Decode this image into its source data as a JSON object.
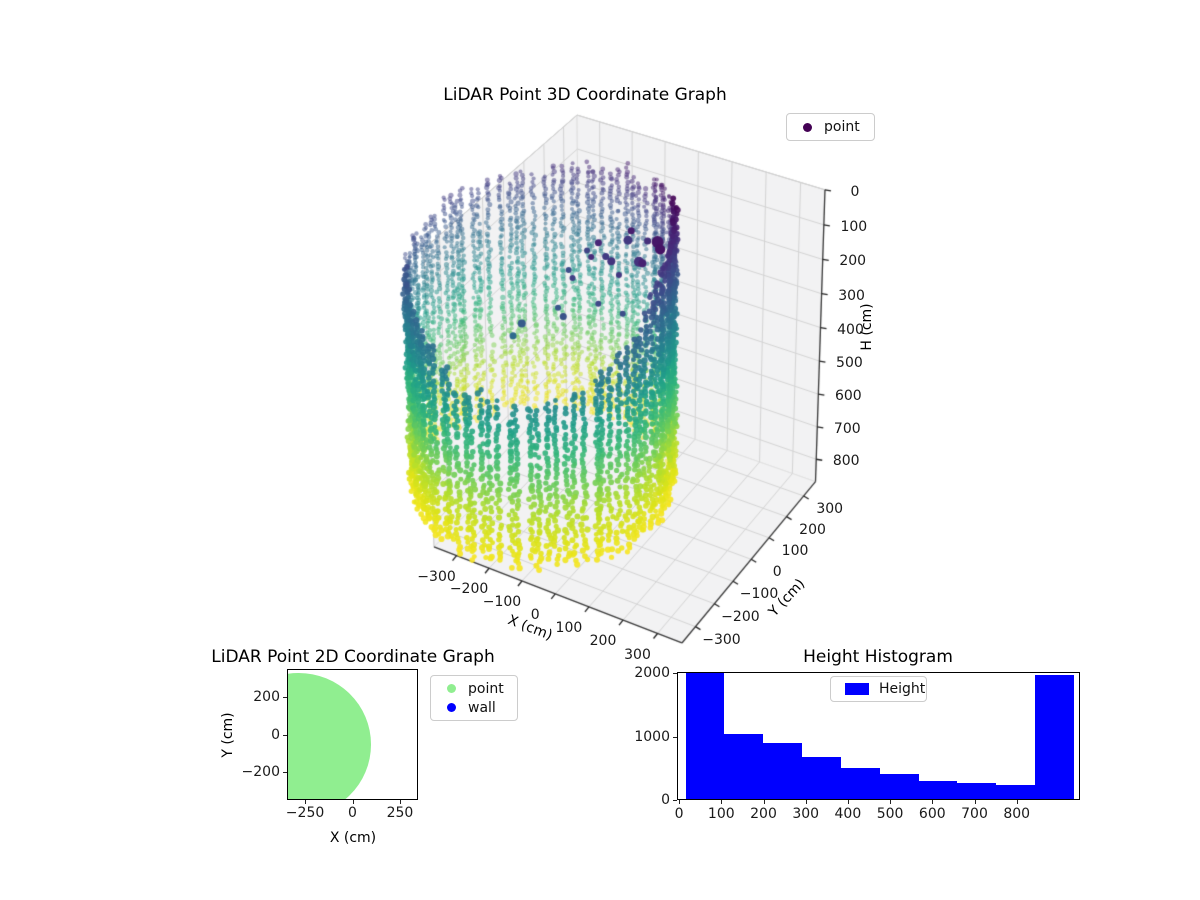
{
  "figure": {
    "background": "#ffffff"
  },
  "chart_data": [
    {
      "id": "plot3d",
      "type": "scatter3d",
      "title": "LiDAR Point 3D Coordinate Graph",
      "legend": {
        "entries": [
          {
            "label": "point",
            "color": "#440154"
          }
        ]
      },
      "xlabel": "X (cm)",
      "ylabel": "Y (cm)",
      "zlabel": "H (cm)",
      "xticks": [
        -300,
        -200,
        -100,
        0,
        100,
        200,
        300
      ],
      "xtick_labels": [
        "−300",
        "−200",
        "−100",
        "0",
        "100",
        "200",
        "300"
      ],
      "yticks": [
        -300,
        -200,
        -100,
        0,
        100,
        200,
        300
      ],
      "ytick_labels": [
        "−300",
        "−200",
        "−100",
        "0",
        "100",
        "200",
        "300"
      ],
      "zticks": [
        0,
        100,
        200,
        300,
        400,
        500,
        600,
        700,
        800
      ],
      "ztick_labels": [
        "0",
        "100",
        "200",
        "300",
        "400",
        "500",
        "600",
        "700",
        "800"
      ],
      "xlim": [
        -370,
        370
      ],
      "ylim": [
        -370,
        370
      ],
      "hlim": [
        0,
        870
      ],
      "h_axis_inverted": true,
      "view": {
        "elev": 30,
        "azim": -60
      },
      "colormap": "viridis",
      "viridis_stops": [
        [
          68,
          1,
          84
        ],
        [
          72,
          40,
          120
        ],
        [
          62,
          74,
          137
        ],
        [
          49,
          104,
          142
        ],
        [
          38,
          130,
          142
        ],
        [
          31,
          158,
          137
        ],
        [
          53,
          183,
          121
        ],
        [
          109,
          205,
          89
        ],
        [
          180,
          222,
          44
        ],
        [
          223,
          227,
          24
        ],
        [
          253,
          231,
          37
        ]
      ],
      "point_cloud": {
        "shape": "cylinder-wall",
        "center_xy": [
          -245,
          -30
        ],
        "radius": 345,
        "columns": 88,
        "h_step_far": 10,
        "h_step_near": 12,
        "h_bottom": 845,
        "h_top": {
          "silhouette_right": 35,
          "silhouette_left": 195,
          "front_center": 377
        },
        "color_by": "height"
      },
      "noise_points": [
        [
          -60,
          20,
          150,
          4
        ],
        [
          -20,
          -10,
          160,
          3
        ],
        [
          10,
          40,
          140,
          5
        ],
        [
          -100,
          60,
          170,
          3.5
        ],
        [
          40,
          90,
          120,
          4
        ],
        [
          -140,
          -40,
          190,
          3
        ],
        [
          -40,
          -80,
          210,
          3
        ],
        [
          70,
          30,
          60,
          6
        ],
        [
          90,
          80,
          70,
          4
        ],
        [
          -10,
          120,
          130,
          3.5
        ],
        [
          -180,
          100,
          200,
          3
        ],
        [
          -80,
          140,
          160,
          4.5
        ],
        [
          20,
          -60,
          230,
          3
        ],
        [
          -120,
          -120,
          250,
          3.5
        ],
        [
          60,
          -30,
          90,
          4
        ],
        [
          -200,
          40,
          230,
          3
        ],
        [
          100,
          -10,
          50,
          5
        ],
        [
          -30,
          70,
          80,
          3.5
        ],
        [
          -160,
          -80,
          260,
          3
        ],
        [
          -95,
          15,
          105,
          3.5
        ],
        [
          -220,
          -160,
          280,
          4
        ],
        [
          -90,
          -30,
          120,
          3
        ],
        [
          -260,
          -140,
          340,
          3.5
        ]
      ]
    },
    {
      "id": "plot2d",
      "type": "scatter",
      "title": "LiDAR Point 2D Coordinate Graph",
      "xlabel": "X (cm)",
      "ylabel": "Y (cm)",
      "xticks": [
        -250,
        0,
        250
      ],
      "xtick_labels": [
        "−250",
        "0",
        "250"
      ],
      "yticks": [
        200,
        0,
        -200
      ],
      "ytick_labels": [
        "200",
        "0",
        "−200"
      ],
      "xlim": [
        -345,
        345
      ],
      "ylim": [
        -350,
        350
      ],
      "legend": {
        "entries": [
          {
            "label": "point",
            "color": "#90ee90"
          },
          {
            "label": "wall",
            "color": "#0000ff"
          }
        ]
      },
      "region": {
        "shape": "disc",
        "center": [
          -283,
          -54
        ],
        "radius": 381,
        "color": "#90ee90"
      }
    },
    {
      "id": "histogram",
      "type": "bar",
      "title": "Height Histogram",
      "legend": {
        "entries": [
          {
            "label": "Height",
            "color": "#0000ff"
          }
        ]
      },
      "bar_color": "#0000ff",
      "bin_edges": [
        13,
        105,
        197,
        289,
        381,
        473,
        565,
        657,
        749,
        841,
        933
      ],
      "values": [
        2000,
        1030,
        890,
        670,
        485,
        395,
        290,
        250,
        225,
        1950
      ],
      "xticks": [
        0,
        100,
        200,
        300,
        400,
        500,
        600,
        700,
        800
      ],
      "xtick_labels": [
        "0",
        "100",
        "200",
        "300",
        "400",
        "500",
        "600",
        "700",
        "800"
      ],
      "yticks": [
        0,
        1000,
        2000
      ],
      "ytick_labels": [
        "0",
        "1000",
        "2000"
      ],
      "xlim": [
        -5,
        950
      ],
      "ylim": [
        0,
        2020
      ]
    }
  ]
}
